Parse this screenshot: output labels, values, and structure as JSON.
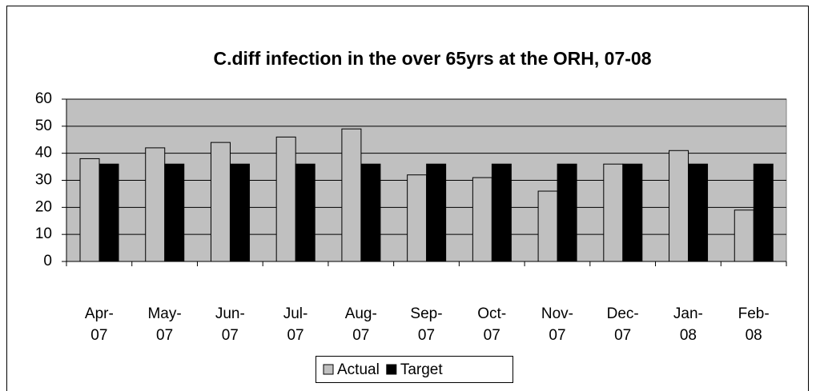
{
  "chart_data": {
    "type": "bar",
    "title": "C.diff infection in the over 65yrs at the ORH, 07-08",
    "categories": [
      "Apr-07",
      "May-07",
      "Jun-07",
      "Jul-07",
      "Aug-07",
      "Sep-07",
      "Oct-07",
      "Nov-07",
      "Dec-07",
      "Jan-08",
      "Feb-08"
    ],
    "series": [
      {
        "name": "Actual",
        "color": "#c0c0c0",
        "values": [
          38,
          42,
          44,
          46,
          49,
          32,
          31,
          26,
          36,
          41,
          19
        ]
      },
      {
        "name": "Target",
        "color": "#000000",
        "values": [
          36,
          36,
          36,
          36,
          36,
          36,
          36,
          36,
          36,
          36,
          36
        ]
      }
    ],
    "ylim": [
      0,
      60
    ],
    "yticks": [
      0,
      10,
      20,
      30,
      40,
      50,
      60
    ],
    "grid": true,
    "legend": "bottom"
  }
}
